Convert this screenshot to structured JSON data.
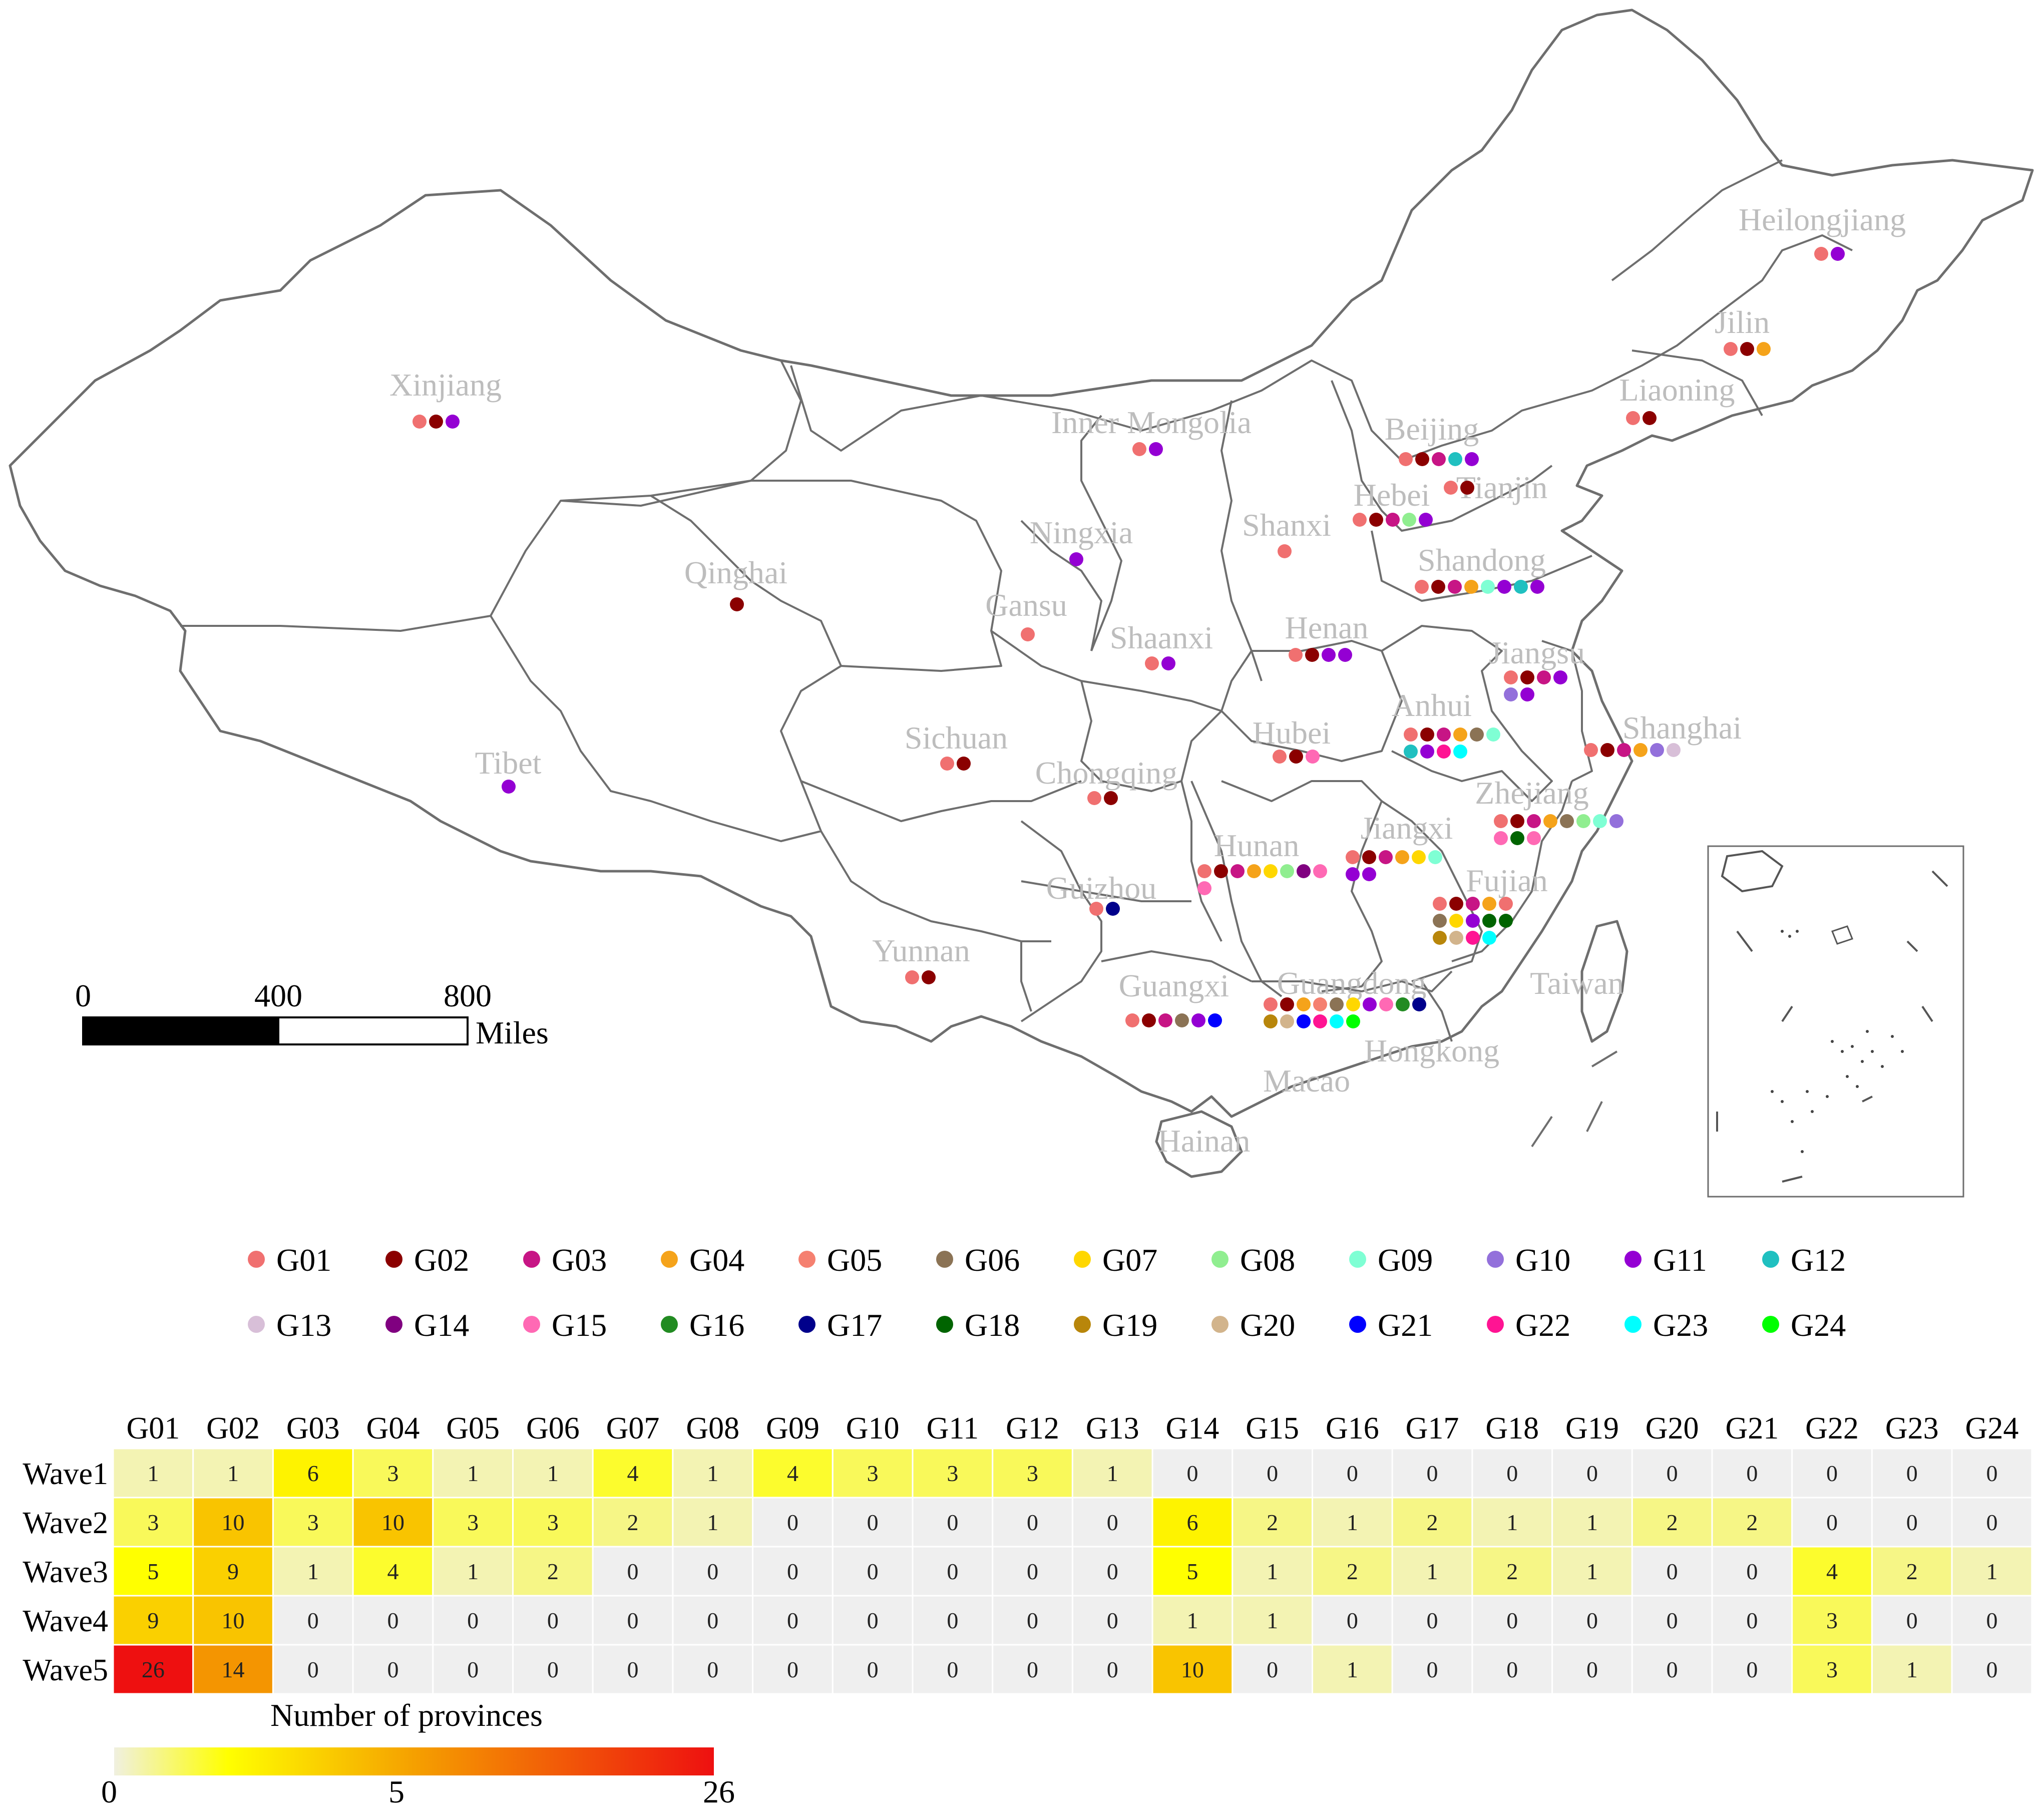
{
  "map": {
    "province_labels": [
      {
        "id": "xinjiang",
        "text": "Xinjiang"
      },
      {
        "id": "inner-mongolia",
        "text": "Inner Mongolia"
      },
      {
        "id": "heilongjiang",
        "text": "Heilongjiang"
      },
      {
        "id": "jilin",
        "text": "Jilin"
      },
      {
        "id": "liaoning",
        "text": "Liaoning"
      },
      {
        "id": "beijing",
        "text": "Beijing"
      },
      {
        "id": "tianjin",
        "text": "Tianjin"
      },
      {
        "id": "hebei",
        "text": "Hebei"
      },
      {
        "id": "shanxi",
        "text": "Shanxi"
      },
      {
        "id": "ningxia",
        "text": "Ningxia"
      },
      {
        "id": "qinghai",
        "text": "Qinghai"
      },
      {
        "id": "gansu",
        "text": "Gansu"
      },
      {
        "id": "shaanxi",
        "text": "Shaanxi"
      },
      {
        "id": "shandong",
        "text": "Shandong"
      },
      {
        "id": "henan",
        "text": "Henan"
      },
      {
        "id": "jiangsu",
        "text": "Jiangsu"
      },
      {
        "id": "anhui",
        "text": "Anhui"
      },
      {
        "id": "shanghai",
        "text": "Shanghai"
      },
      {
        "id": "hubei",
        "text": "Hubei"
      },
      {
        "id": "sichuan",
        "text": "Sichuan"
      },
      {
        "id": "chongqing",
        "text": "Chongqing"
      },
      {
        "id": "tibet",
        "text": "Tibet"
      },
      {
        "id": "zhejiang",
        "text": "Zhejiang"
      },
      {
        "id": "hunan",
        "text": "Hunan"
      },
      {
        "id": "jiangxi",
        "text": "Jiangxi"
      },
      {
        "id": "guizhou",
        "text": "Guizhou"
      },
      {
        "id": "fujian",
        "text": "Fujian"
      },
      {
        "id": "yunnan",
        "text": "Yunnan"
      },
      {
        "id": "guangxi",
        "text": "Guangxi"
      },
      {
        "id": "guangdong",
        "text": "Guangdong"
      },
      {
        "id": "taiwan",
        "text": "Taiwan"
      },
      {
        "id": "hongkong",
        "text": "Hongkong"
      },
      {
        "id": "macao",
        "text": "Macao"
      },
      {
        "id": "hainan",
        "text": "Hainan"
      }
    ],
    "province_groups": {
      "xinjiang": [
        "G01",
        "G02",
        "G11"
      ],
      "inner-mongolia": [
        "G01",
        "G11"
      ],
      "heilongjiang": [
        "G01",
        "G11"
      ],
      "jilin": [
        "G01",
        "G02",
        "G04"
      ],
      "liaoning": [
        "G01",
        "G02"
      ],
      "beijing": [
        "G01",
        "G02",
        "G03",
        "G12",
        "G11"
      ],
      "tianjin": [
        "G01",
        "G02"
      ],
      "hebei": [
        "G01",
        "G02",
        "G03",
        "G08",
        "G11"
      ],
      "shanxi": [
        "G01"
      ],
      "ningxia": [
        "G11"
      ],
      "qinghai": [
        "G02"
      ],
      "gansu": [
        "G01"
      ],
      "shaanxi": [
        "G01",
        "G11"
      ],
      "shandong": [
        "G01",
        "G02",
        "G03",
        "G04",
        "G09",
        "G11",
        "G12",
        "G11"
      ],
      "henan": [
        "G01",
        "G02",
        "G11",
        "G11"
      ],
      "jiangsu": [
        "G01",
        "G02",
        "G03",
        "G11",
        "G10",
        "G11"
      ],
      "anhui": [
        "G01",
        "G02",
        "G03",
        "G04",
        "G06",
        "G09",
        "G12",
        "G11",
        "G22",
        "G23"
      ],
      "shanghai": [
        "G01",
        "G02",
        "G03",
        "G04",
        "G10",
        "G13"
      ],
      "hubei": [
        "G01",
        "G02",
        "G15"
      ],
      "sichuan": [
        "G01",
        "G02"
      ],
      "chongqing": [
        "G01",
        "G02"
      ],
      "tibet": [
        "G11"
      ],
      "zhejiang": [
        "G01",
        "G02",
        "G03",
        "G04",
        "G06",
        "G08",
        "G09",
        "G10",
        "G15",
        "G18",
        "G15"
      ],
      "hunan": [
        "G01",
        "G02",
        "G03",
        "G04",
        "G07",
        "G08",
        "G14",
        "G15",
        "G15"
      ],
      "jiangxi": [
        "G01",
        "G02",
        "G03",
        "G04",
        "G07",
        "G09",
        "G11",
        "G11"
      ],
      "guizhou": [
        "G01",
        "G17"
      ],
      "fujian": [
        "G01",
        "G02",
        "G03",
        "G04",
        "G01",
        "G06",
        "G07",
        "G11",
        "G18",
        "G18",
        "G19",
        "G20",
        "G22",
        "G23"
      ],
      "yunnan": [
        "G01",
        "G02"
      ],
      "guangxi": [
        "G01",
        "G02",
        "G03",
        "G06",
        "G11",
        "G21"
      ],
      "guangdong": [
        "G01",
        "G02",
        "G04",
        "G05",
        "G06",
        "G07",
        "G11",
        "G15",
        "G16",
        "G17",
        "G19",
        "G20",
        "G21",
        "G22",
        "G23",
        "G24"
      ]
    },
    "scale_bar": {
      "ticks": [
        "0",
        "400",
        "800"
      ],
      "unit": "Miles"
    }
  },
  "legend": [
    {
      "id": "G01",
      "label": "G01",
      "color": "#F07070"
    },
    {
      "id": "G02",
      "label": "G02",
      "color": "#8B0000"
    },
    {
      "id": "G03",
      "label": "G03",
      "color": "#C71585"
    },
    {
      "id": "G04",
      "label": "G04",
      "color": "#F5A31A"
    },
    {
      "id": "G05",
      "label": "G05",
      "color": "#F58070"
    },
    {
      "id": "G06",
      "label": "G06",
      "color": "#8B7355"
    },
    {
      "id": "G07",
      "label": "G07",
      "color": "#FFD700"
    },
    {
      "id": "G08",
      "label": "G08",
      "color": "#90EE90"
    },
    {
      "id": "G09",
      "label": "G09",
      "color": "#7FFFD4"
    },
    {
      "id": "G10",
      "label": "G10",
      "color": "#9370DB"
    },
    {
      "id": "G11",
      "label": "G11",
      "color": "#9400D3"
    },
    {
      "id": "G12",
      "label": "G12",
      "color": "#20C0C0"
    },
    {
      "id": "G13",
      "label": "G13",
      "color": "#D8BFD8"
    },
    {
      "id": "G14",
      "label": "G14",
      "color": "#800080"
    },
    {
      "id": "G15",
      "label": "G15",
      "color": "#FF69B4"
    },
    {
      "id": "G16",
      "label": "G16",
      "color": "#228B22"
    },
    {
      "id": "G17",
      "label": "G17",
      "color": "#00008B"
    },
    {
      "id": "G18",
      "label": "G18",
      "color": "#006400"
    },
    {
      "id": "G19",
      "label": "G19",
      "color": "#B8860B"
    },
    {
      "id": "G20",
      "label": "G20",
      "color": "#D2B48C"
    },
    {
      "id": "G21",
      "label": "G21",
      "color": "#0000FF"
    },
    {
      "id": "G22",
      "label": "G22",
      "color": "#FF1493"
    },
    {
      "id": "G23",
      "label": "G23",
      "color": "#00FFFF"
    },
    {
      "id": "G24",
      "label": "G24",
      "color": "#00FF00"
    }
  ],
  "chart_data": {
    "type": "heatmap",
    "columns": [
      "G01",
      "G02",
      "G03",
      "G04",
      "G05",
      "G06",
      "G07",
      "G08",
      "G09",
      "G10",
      "G11",
      "G12",
      "G13",
      "G14",
      "G15",
      "G16",
      "G17",
      "G18",
      "G19",
      "G20",
      "G21",
      "G22",
      "G23",
      "G24"
    ],
    "rows": [
      "Wave1",
      "Wave2",
      "Wave3",
      "Wave4",
      "Wave5"
    ],
    "values": [
      [
        1,
        1,
        6,
        3,
        1,
        1,
        4,
        1,
        4,
        3,
        3,
        3,
        1,
        0,
        0,
        0,
        0,
        0,
        0,
        0,
        0,
        0,
        0,
        0
      ],
      [
        3,
        10,
        3,
        10,
        3,
        3,
        2,
        1,
        0,
        0,
        0,
        0,
        0,
        6,
        2,
        1,
        2,
        1,
        1,
        2,
        2,
        0,
        0,
        0
      ],
      [
        5,
        9,
        1,
        4,
        1,
        2,
        0,
        0,
        0,
        0,
        0,
        0,
        0,
        5,
        1,
        2,
        1,
        2,
        1,
        0,
        0,
        4,
        2,
        1
      ],
      [
        9,
        10,
        0,
        0,
        0,
        0,
        0,
        0,
        0,
        0,
        0,
        0,
        0,
        1,
        1,
        0,
        0,
        0,
        0,
        0,
        0,
        3,
        0,
        0
      ],
      [
        26,
        14,
        0,
        0,
        0,
        0,
        0,
        0,
        0,
        0,
        0,
        0,
        0,
        10,
        0,
        1,
        0,
        0,
        0,
        0,
        0,
        3,
        1,
        0
      ]
    ],
    "colorbar": {
      "title": "Number of provinces",
      "min": 0,
      "mid": 5,
      "max": 26,
      "tick_labels": [
        "0",
        "5",
        "26"
      ]
    }
  }
}
